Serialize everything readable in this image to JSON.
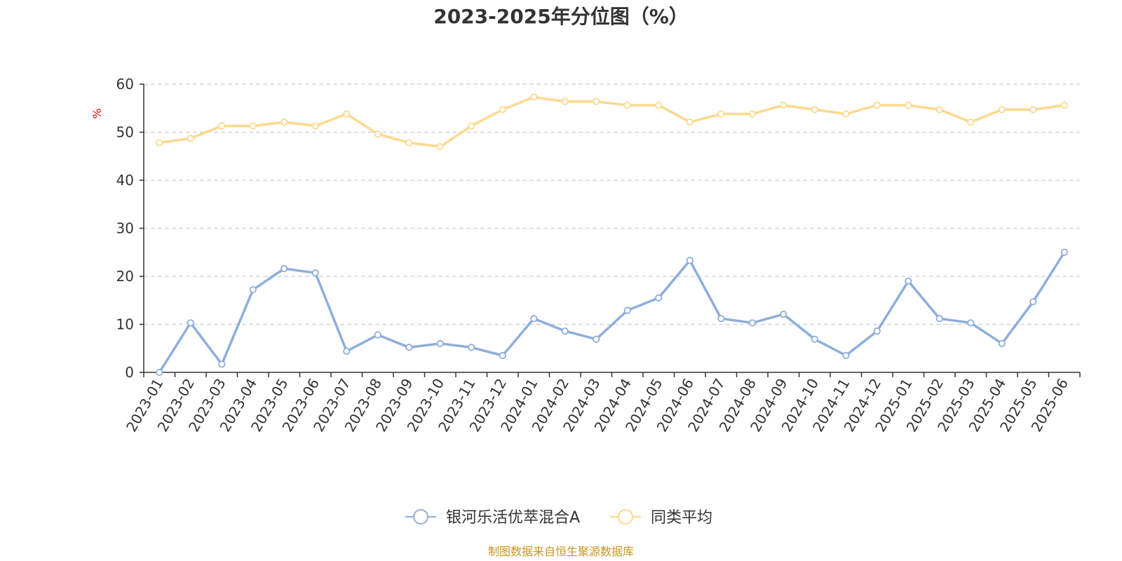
{
  "chart_data": {
    "type": "line",
    "title": "2023-2025年分位图（%）",
    "xlabel": "",
    "ylabel": "%",
    "ylim": [
      0,
      60
    ],
    "yticks": [
      0,
      10,
      20,
      30,
      40,
      50,
      60
    ],
    "grid": true,
    "legend_position": "bottom",
    "categories": [
      "2023-01",
      "2023-02",
      "2023-03",
      "2023-04",
      "2023-05",
      "2023-06",
      "2023-07",
      "2023-08",
      "2023-09",
      "2023-10",
      "2023-11",
      "2023-12",
      "2024-01",
      "2024-02",
      "2024-03",
      "2024-04",
      "2024-05",
      "2024-06",
      "2024-07",
      "2024-08",
      "2024-09",
      "2024-10",
      "2024-11",
      "2024-12",
      "2025-01",
      "2025-02",
      "2025-03",
      "2025-04",
      "2025-05",
      "2025-06"
    ],
    "series": [
      {
        "name": "银河乐活优萃混合A",
        "color": "#8eaedb",
        "values": [
          0,
          10.3,
          1.7,
          17.2,
          21.6,
          20.7,
          4.4,
          7.8,
          5.2,
          6.0,
          5.2,
          3.5,
          11.2,
          8.6,
          6.9,
          12.9,
          15.5,
          23.3,
          11.2,
          10.3,
          12.1,
          6.9,
          3.5,
          8.6,
          19.0,
          11.2,
          10.3,
          6.0,
          14.7,
          25.0
        ]
      },
      {
        "name": "同类平均",
        "color": "#fcd98e",
        "values": [
          47.8,
          48.7,
          51.3,
          51.3,
          52.1,
          51.3,
          53.8,
          49.6,
          47.8,
          47.0,
          51.3,
          54.7,
          57.3,
          56.4,
          56.4,
          55.6,
          55.6,
          52.1,
          53.8,
          53.8,
          55.6,
          54.7,
          53.8,
          55.6,
          55.6,
          54.7,
          52.1,
          54.7,
          54.7,
          55.6
        ]
      }
    ]
  },
  "footer": {
    "source": "制图数据来自恒生聚源数据库"
  },
  "colors": {
    "source_text": "#c8951f",
    "ylabel_text": "#ff0000",
    "axis": "#333333",
    "grid": "#cccccc"
  }
}
